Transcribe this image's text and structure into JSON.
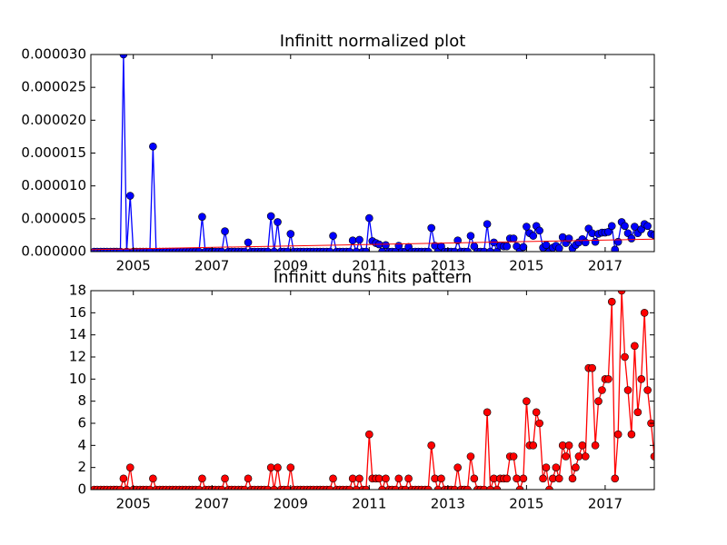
{
  "chart_data": [
    {
      "type": "line",
      "title": "Infinitt normalized plot",
      "x": [
        2004.0,
        2004.08,
        2004.17,
        2004.25,
        2004.33,
        2004.42,
        2004.5,
        2004.58,
        2004.67,
        2004.75,
        2004.83,
        2004.92,
        2005.0,
        2005.08,
        2005.17,
        2005.25,
        2005.33,
        2005.42,
        2005.5,
        2005.58,
        2005.67,
        2005.75,
        2005.83,
        2005.92,
        2006.0,
        2006.08,
        2006.17,
        2006.25,
        2006.33,
        2006.42,
        2006.5,
        2006.58,
        2006.67,
        2006.75,
        2006.83,
        2006.92,
        2007.0,
        2007.08,
        2007.17,
        2007.25,
        2007.33,
        2007.42,
        2007.5,
        2007.58,
        2007.67,
        2007.75,
        2007.83,
        2007.92,
        2008.0,
        2008.08,
        2008.17,
        2008.25,
        2008.33,
        2008.42,
        2008.5,
        2008.58,
        2008.67,
        2008.75,
        2008.83,
        2008.92,
        2009.0,
        2009.08,
        2009.17,
        2009.25,
        2009.33,
        2009.42,
        2009.5,
        2009.58,
        2009.67,
        2009.75,
        2009.83,
        2009.92,
        2010.0,
        2010.08,
        2010.17,
        2010.25,
        2010.33,
        2010.42,
        2010.5,
        2010.58,
        2010.67,
        2010.75,
        2010.83,
        2010.92,
        2011.0,
        2011.08,
        2011.17,
        2011.25,
        2011.33,
        2011.42,
        2011.5,
        2011.58,
        2011.67,
        2011.75,
        2011.83,
        2011.92,
        2012.0,
        2012.08,
        2012.17,
        2012.25,
        2012.33,
        2012.42,
        2012.5,
        2012.58,
        2012.67,
        2012.75,
        2012.83,
        2012.92,
        2013.0,
        2013.08,
        2013.17,
        2013.25,
        2013.33,
        2013.42,
        2013.5,
        2013.58,
        2013.67,
        2013.75,
        2013.83,
        2013.92,
        2014.0,
        2014.08,
        2014.17,
        2014.25,
        2014.33,
        2014.42,
        2014.5,
        2014.58,
        2014.67,
        2014.75,
        2014.83,
        2014.92,
        2015.0,
        2015.08,
        2015.17,
        2015.25,
        2015.33,
        2015.42,
        2015.5,
        2015.58,
        2015.67,
        2015.75,
        2015.83,
        2015.92,
        2016.0,
        2016.08,
        2016.17,
        2016.25,
        2016.33,
        2016.42,
        2016.5,
        2016.58,
        2016.67,
        2016.75,
        2016.83,
        2016.92,
        2017.0,
        2017.08,
        2017.17,
        2017.25,
        2017.33,
        2017.42,
        2017.5,
        2017.58,
        2017.67,
        2017.75,
        2017.83,
        2017.92,
        2018.0,
        2018.08,
        2018.17,
        2018.25
      ],
      "series": [
        {
          "color": "#0000ff",
          "values": [
            0,
            0,
            0,
            0,
            0,
            0,
            0,
            0,
            0,
            3e-05,
            0,
            8.5e-06,
            0,
            0,
            0,
            0,
            0,
            0,
            1.6e-05,
            0,
            0,
            0,
            0,
            0,
            0,
            0,
            0,
            0,
            0,
            0,
            0,
            0,
            0,
            5.3e-06,
            0,
            0,
            0,
            0,
            0,
            0,
            3.1e-06,
            0,
            0,
            0,
            0,
            0,
            0,
            1.4e-06,
            0,
            0,
            0,
            0,
            0,
            0,
            5.4e-06,
            0,
            4.5e-06,
            0,
            0,
            0,
            2.7e-06,
            0,
            0,
            0,
            0,
            0,
            0,
            0,
            0,
            0,
            0,
            0,
            0,
            2.4e-06,
            0,
            0,
            0,
            0,
            0,
            1.7e-06,
            0,
            1.8e-06,
            0,
            0,
            5.1e-06,
            1.6e-06,
            1.3e-06,
            1.1e-06,
            0,
            1e-06,
            0,
            0,
            0,
            9e-07,
            0,
            0,
            7e-07,
            0,
            0,
            0,
            0,
            0,
            0,
            3.6e-06,
            9e-07,
            0,
            8e-07,
            0,
            0,
            0,
            0,
            1.7e-06,
            0,
            0,
            0,
            2.4e-06,
            8e-07,
            0,
            0,
            0,
            4.2e-06,
            0,
            1.4e-06,
            0,
            9e-07,
            8e-07,
            8e-07,
            2e-06,
            2e-06,
            8e-07,
            0,
            7e-07,
            3.8e-06,
            2.8e-06,
            2.4e-06,
            3.9e-06,
            3.2e-06,
            6e-07,
            1e-06,
            0,
            6e-07,
            9e-07,
            5e-07,
            2.2e-06,
            1.3e-06,
            2e-06,
            5e-07,
            1e-06,
            1.4e-06,
            1.9e-06,
            1.4e-06,
            3.5e-06,
            2.8e-06,
            1.5e-06,
            2.7e-06,
            2.9e-06,
            2.9e-06,
            3e-06,
            3.9e-06,
            3e-07,
            1.5e-06,
            4.5e-06,
            3.9e-06,
            2.8e-06,
            2e-06,
            3.8e-06,
            2.8e-06,
            3.4e-06,
            4.2e-06,
            3.9e-06,
            2.7e-06,
            2.5e-06
          ]
        }
      ],
      "trend": {
        "x": [
          2003.92,
          2018.25
        ],
        "values": [
          3e-07,
          1.9e-06
        ],
        "color": "#ff0000"
      },
      "xlim": [
        2003.92,
        2018.25
      ],
      "xticks": [
        2005,
        2007,
        2009,
        2011,
        2013,
        2015,
        2017
      ],
      "ylim": [
        0,
        3e-05
      ],
      "yticks": [
        {
          "value": 0,
          "label": "0.000000"
        },
        {
          "value": 5e-06,
          "label": "0.000005"
        },
        {
          "value": 1e-05,
          "label": "0.000010"
        },
        {
          "value": 1.5e-05,
          "label": "0.000015"
        },
        {
          "value": 2e-05,
          "label": "0.000020"
        },
        {
          "value": 2.5e-05,
          "label": "0.000025"
        },
        {
          "value": 3e-05,
          "label": "0.000030"
        }
      ]
    },
    {
      "type": "line",
      "title": "Infinitt duns hits pattern",
      "x": [
        2004.0,
        2004.08,
        2004.17,
        2004.25,
        2004.33,
        2004.42,
        2004.5,
        2004.58,
        2004.67,
        2004.75,
        2004.83,
        2004.92,
        2005.0,
        2005.08,
        2005.17,
        2005.25,
        2005.33,
        2005.42,
        2005.5,
        2005.58,
        2005.67,
        2005.75,
        2005.83,
        2005.92,
        2006.0,
        2006.08,
        2006.17,
        2006.25,
        2006.33,
        2006.42,
        2006.5,
        2006.58,
        2006.67,
        2006.75,
        2006.83,
        2006.92,
        2007.0,
        2007.08,
        2007.17,
        2007.25,
        2007.33,
        2007.42,
        2007.5,
        2007.58,
        2007.67,
        2007.75,
        2007.83,
        2007.92,
        2008.0,
        2008.08,
        2008.17,
        2008.25,
        2008.33,
        2008.42,
        2008.5,
        2008.58,
        2008.67,
        2008.75,
        2008.83,
        2008.92,
        2009.0,
        2009.08,
        2009.17,
        2009.25,
        2009.33,
        2009.42,
        2009.5,
        2009.58,
        2009.67,
        2009.75,
        2009.83,
        2009.92,
        2010.0,
        2010.08,
        2010.17,
        2010.25,
        2010.33,
        2010.42,
        2010.5,
        2010.58,
        2010.67,
        2010.75,
        2010.83,
        2010.92,
        2011.0,
        2011.08,
        2011.17,
        2011.25,
        2011.33,
        2011.42,
        2011.5,
        2011.58,
        2011.67,
        2011.75,
        2011.83,
        2011.92,
        2012.0,
        2012.08,
        2012.17,
        2012.25,
        2012.33,
        2012.42,
        2012.5,
        2012.58,
        2012.67,
        2012.75,
        2012.83,
        2012.92,
        2013.0,
        2013.08,
        2013.17,
        2013.25,
        2013.33,
        2013.42,
        2013.5,
        2013.58,
        2013.67,
        2013.75,
        2013.83,
        2013.92,
        2014.0,
        2014.08,
        2014.17,
        2014.25,
        2014.33,
        2014.42,
        2014.5,
        2014.58,
        2014.67,
        2014.75,
        2014.83,
        2014.92,
        2015.0,
        2015.08,
        2015.17,
        2015.25,
        2015.33,
        2015.42,
        2015.5,
        2015.58,
        2015.67,
        2015.75,
        2015.83,
        2015.92,
        2016.0,
        2016.08,
        2016.17,
        2016.25,
        2016.33,
        2016.42,
        2016.5,
        2016.58,
        2016.67,
        2016.75,
        2016.83,
        2016.92,
        2017.0,
        2017.08,
        2017.17,
        2017.25,
        2017.33,
        2017.42,
        2017.5,
        2017.58,
        2017.67,
        2017.75,
        2017.83,
        2017.92,
        2018.0,
        2018.08,
        2018.17,
        2018.25
      ],
      "series": [
        {
          "color": "#ff0000",
          "values": [
            0,
            0,
            0,
            0,
            0,
            0,
            0,
            0,
            0,
            1,
            0,
            2,
            0,
            0,
            0,
            0,
            0,
            0,
            1,
            0,
            0,
            0,
            0,
            0,
            0,
            0,
            0,
            0,
            0,
            0,
            0,
            0,
            0,
            1,
            0,
            0,
            0,
            0,
            0,
            0,
            1,
            0,
            0,
            0,
            0,
            0,
            0,
            1,
            0,
            0,
            0,
            0,
            0,
            0,
            2,
            0,
            2,
            0,
            0,
            0,
            2,
            0,
            0,
            0,
            0,
            0,
            0,
            0,
            0,
            0,
            0,
            0,
            0,
            1,
            0,
            0,
            0,
            0,
            0,
            1,
            0,
            1,
            0,
            0,
            5,
            1,
            1,
            1,
            0,
            1,
            0,
            0,
            0,
            1,
            0,
            0,
            1,
            0,
            0,
            0,
            0,
            0,
            0,
            4,
            1,
            0,
            1,
            0,
            0,
            0,
            0,
            2,
            0,
            0,
            0,
            3,
            1,
            0,
            0,
            0,
            7,
            0,
            1,
            0,
            1,
            1,
            1,
            3,
            3,
            1,
            0,
            1,
            8,
            4,
            4,
            7,
            6,
            1,
            2,
            0,
            1,
            2,
            1,
            4,
            3,
            4,
            1,
            2,
            3,
            4,
            3,
            11,
            11,
            4,
            8,
            9,
            10,
            10,
            17,
            1,
            5,
            18,
            12,
            9,
            5,
            13,
            7,
            10,
            16,
            9,
            6,
            3
          ]
        }
      ],
      "xlim": [
        2003.92,
        2018.25
      ],
      "xticks": [
        2005,
        2007,
        2009,
        2011,
        2013,
        2015,
        2017
      ],
      "ylim": [
        0,
        18
      ],
      "yticks": [
        0,
        2,
        4,
        6,
        8,
        10,
        12,
        14,
        16,
        18
      ]
    }
  ]
}
